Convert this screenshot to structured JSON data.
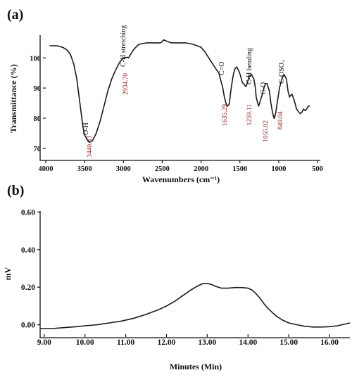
{
  "chart_data": [
    {
      "panel": "(a)",
      "type": "line",
      "xlabel": "Wavenumbers (cm⁻¹)",
      "ylabel": "Transmittance (%)",
      "xlim": [
        4000,
        500
      ],
      "ylim": [
        66,
        108
      ],
      "x_ticks": [
        "4000",
        "3500",
        "3000",
        "2500",
        "2000",
        "1500",
        "1000",
        "500"
      ],
      "y_ticks": [
        "70",
        "80",
        "90",
        "100"
      ],
      "series": [
        {
          "x": [
            3950,
            3850,
            3780,
            3720,
            3680,
            3640,
            3600,
            3560,
            3520,
            3500,
            3470,
            3440,
            3400,
            3350,
            3300,
            3250,
            3200,
            3150,
            3100,
            3050,
            3000,
            2950,
            2934,
            2900,
            2860,
            2800,
            2700,
            2600,
            2520,
            2480,
            2440,
            2380,
            2300,
            2200,
            2100,
            2050,
            2000,
            1950,
            1900,
            1850,
            1800,
            1770,
            1750,
            1720,
            1700,
            1680,
            1660,
            1640,
            1630,
            1620,
            1600,
            1580,
            1560,
            1540,
            1510,
            1490,
            1470,
            1440,
            1420,
            1400,
            1380,
            1350,
            1320,
            1300,
            1290,
            1270,
            1259,
            1240,
            1210,
            1190,
            1170,
            1150,
            1120,
            1100,
            1080,
            1060,
            1055,
            1040,
            1020,
            990,
            960,
            930,
            900,
            880,
            860,
            849,
            830,
            800,
            770,
            740,
            720,
            700,
            680,
            660,
            640,
            620,
            600
          ],
          "y": [
            104,
            104,
            103.5,
            102.5,
            101,
            98,
            93,
            85,
            77,
            74.5,
            73,
            72,
            72.5,
            75,
            79,
            84,
            89,
            93,
            96,
            98.5,
            100,
            100.2,
            100,
            101.5,
            103,
            104.5,
            105,
            105,
            105,
            106,
            105.5,
            105,
            105,
            105,
            104.5,
            104,
            103.5,
            102,
            100,
            98,
            96,
            95,
            93,
            90,
            87,
            85,
            84,
            84.5,
            86,
            88.5,
            92,
            95,
            96.5,
            97,
            95.5,
            94,
            92,
            91,
            90.5,
            92,
            94,
            94.5,
            93,
            90,
            87,
            85,
            84,
            85.5,
            88,
            90,
            91.5,
            91.5,
            89,
            85,
            82,
            80,
            80,
            81.5,
            85,
            90,
            93,
            94.5,
            93,
            89,
            87,
            87.5,
            88,
            86,
            83,
            82,
            81.5,
            82,
            83,
            82.5,
            83,
            84,
            84
          ]
        }
      ],
      "annotations": [
        {
          "label": "O-H",
          "wavenumber": "3440.33"
        },
        {
          "label": "C-H stretching",
          "wavenumber": "2934.70"
        },
        {
          "label": "C=O",
          "wavenumber": "1635.29"
        },
        {
          "label": "C-H bending",
          "wavenumber": "1259.11"
        },
        {
          "label": "C-O",
          "wavenumber": "1055.02"
        },
        {
          "label": "C-OSO₃",
          "wavenumber": "849.04"
        }
      ]
    },
    {
      "panel": "(b)",
      "type": "line",
      "xlabel": "Minutes (Min)",
      "ylabel": "mV",
      "xlim": [
        8.9,
        16.5
      ],
      "ylim": [
        -0.05,
        0.65
      ],
      "x_ticks": [
        "9.00",
        "10.00",
        "11.00",
        "12.00",
        "13.00",
        "14.00",
        "15.00",
        "16.00"
      ],
      "y_ticks": [
        "0.00",
        "0.20",
        "0.40",
        "0.60"
      ],
      "series": [
        {
          "x": [
            8.9,
            9.2,
            9.5,
            9.8,
            10.0,
            10.3,
            10.6,
            10.9,
            11.2,
            11.5,
            11.8,
            12.0,
            12.2,
            12.4,
            12.6,
            12.75,
            12.9,
            13.0,
            13.1,
            13.2,
            13.35,
            13.5,
            13.7,
            13.85,
            14.0,
            14.1,
            14.2,
            14.3,
            14.4,
            14.5,
            14.6,
            14.7,
            14.85,
            15.0,
            15.2,
            15.4,
            15.6,
            15.8,
            16.0,
            16.2,
            16.5
          ],
          "y": [
            -0.02,
            -0.02,
            -0.015,
            -0.01,
            -0.005,
            0.0,
            0.01,
            0.02,
            0.035,
            0.055,
            0.08,
            0.1,
            0.125,
            0.155,
            0.185,
            0.205,
            0.22,
            0.22,
            0.215,
            0.205,
            0.195,
            0.195,
            0.198,
            0.198,
            0.195,
            0.185,
            0.165,
            0.14,
            0.11,
            0.085,
            0.065,
            0.045,
            0.025,
            0.01,
            0.0,
            -0.008,
            -0.012,
            -0.012,
            -0.01,
            -0.005,
            0.01
          ]
        }
      ]
    }
  ]
}
